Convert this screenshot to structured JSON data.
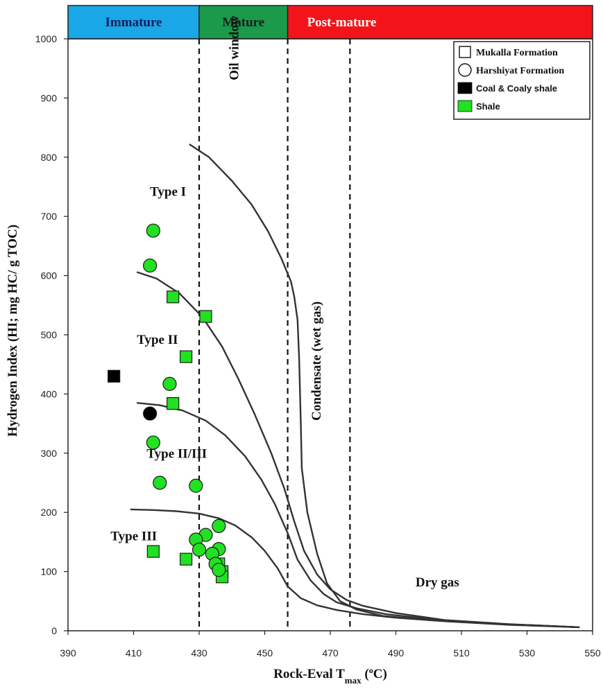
{
  "chart_data": {
    "type": "scatter",
    "xlabel": "Rock-Eval T",
    "xlabel_sub": "max",
    "xlabel_tail_pre": " (",
    "xlabel_sup": "o",
    "xlabel_tail": "C)",
    "ylabel": "Hydrogen Index (HI; mg HC/ g TOC)",
    "xlim": [
      390,
      550
    ],
    "ylim": [
      0,
      1000
    ],
    "xticks": [
      390,
      410,
      430,
      450,
      470,
      490,
      510,
      530,
      550
    ],
    "yticks": [
      0,
      100,
      200,
      300,
      400,
      500,
      600,
      700,
      800,
      900,
      1000
    ],
    "grid": false,
    "legend_position": "top-right",
    "maturity_bands": [
      {
        "label": "Immature",
        "from": 390,
        "to": 430,
        "color": "#1aa7e8"
      },
      {
        "label": "Mature",
        "from": 430,
        "to": 457,
        "color": "#1a9a4a"
      },
      {
        "label": "Post-mature",
        "from": 457,
        "to": 550,
        "color": "#f2141a"
      }
    ],
    "band_label_colors": {
      "Immature": "#1b1b5c",
      "Mature": "#1b1b1b",
      "Post-mature": "#ffffff"
    },
    "vertical_lines": [
      430,
      457,
      476
    ],
    "annotations": [
      {
        "text": "Type I",
        "x": 415,
        "y": 735
      },
      {
        "text": "Type II",
        "x": 411,
        "y": 485
      },
      {
        "text": "Type II/III",
        "x": 414,
        "y": 292
      },
      {
        "text": "Type III",
        "x": 403,
        "y": 153
      },
      {
        "text": "Oil window",
        "x": 442,
        "y": 930,
        "rotate": -90
      },
      {
        "text": "Condensate (wet gas)",
        "x": 467,
        "y": 355,
        "rotate": -90
      },
      {
        "text": "Dry gas",
        "x": 496,
        "y": 75
      }
    ],
    "curves": [
      {
        "name": "Type I",
        "points": [
          [
            427,
            822
          ],
          [
            433,
            800
          ],
          [
            440,
            760
          ],
          [
            446,
            720
          ],
          [
            451,
            675
          ],
          [
            455,
            630
          ],
          [
            458,
            590
          ],
          [
            459,
            565
          ],
          [
            460,
            525
          ],
          [
            460.5,
            460
          ],
          [
            461,
            350
          ],
          [
            461.3,
            275
          ],
          [
            463,
            200
          ],
          [
            466,
            130
          ],
          [
            469,
            80
          ],
          [
            473,
            50
          ],
          [
            478,
            36
          ],
          [
            486,
            25
          ],
          [
            500,
            18
          ],
          [
            520,
            12
          ],
          [
            546,
            6
          ]
        ]
      },
      {
        "name": "Type II",
        "points": [
          [
            411,
            606
          ],
          [
            417,
            595
          ],
          [
            424,
            570
          ],
          [
            431,
            530
          ],
          [
            437,
            480
          ],
          [
            442,
            425
          ],
          [
            447,
            365
          ],
          [
            452,
            300
          ],
          [
            456,
            240
          ],
          [
            459,
            185
          ],
          [
            462,
            135
          ],
          [
            466,
            95
          ],
          [
            470,
            70
          ],
          [
            475,
            52
          ],
          [
            480,
            42
          ],
          [
            490,
            30
          ],
          [
            505,
            18
          ],
          [
            525,
            11
          ],
          [
            546,
            6
          ]
        ]
      },
      {
        "name": "Type II/III",
        "points": [
          [
            411,
            385
          ],
          [
            418,
            381
          ],
          [
            425,
            372
          ],
          [
            432,
            355
          ],
          [
            438,
            330
          ],
          [
            444,
            295
          ],
          [
            449,
            255
          ],
          [
            453,
            215
          ],
          [
            457,
            165
          ],
          [
            460,
            120
          ],
          [
            464,
            85
          ],
          [
            468,
            62
          ],
          [
            472,
            48
          ],
          [
            478,
            38
          ],
          [
            487,
            28
          ],
          [
            500,
            20
          ],
          [
            520,
            12
          ],
          [
            546,
            6
          ]
        ]
      },
      {
        "name": "Type III",
        "points": [
          [
            409,
            205
          ],
          [
            416,
            204
          ],
          [
            423,
            202
          ],
          [
            430,
            198
          ],
          [
            436,
            190
          ],
          [
            441,
            178
          ],
          [
            446,
            158
          ],
          [
            450,
            135
          ],
          [
            454,
            105
          ],
          [
            457,
            75
          ],
          [
            461,
            55
          ],
          [
            466,
            43
          ],
          [
            472,
            35
          ],
          [
            480,
            28
          ],
          [
            490,
            22
          ],
          [
            505,
            16
          ],
          [
            525,
            10
          ],
          [
            546,
            6
          ]
        ]
      }
    ],
    "series": [
      {
        "name": "Mukalla Formation",
        "shape": "square",
        "points": [
          {
            "x": 422,
            "y": 564,
            "fill": "#22e022"
          },
          {
            "x": 432,
            "y": 531,
            "fill": "#22e022"
          },
          {
            "x": 426,
            "y": 463,
            "fill": "#22e022"
          },
          {
            "x": 404,
            "y": 430,
            "fill": "#000000"
          },
          {
            "x": 422,
            "y": 384,
            "fill": "#22e022"
          },
          {
            "x": 416,
            "y": 134,
            "fill": "#22e022"
          },
          {
            "x": 426,
            "y": 121,
            "fill": "#22e022"
          },
          {
            "x": 436,
            "y": 113,
            "fill": "#22e022"
          },
          {
            "x": 437,
            "y": 100,
            "fill": "#22e022"
          },
          {
            "x": 437,
            "y": 91,
            "fill": "#22e022"
          }
        ]
      },
      {
        "name": "Harshiyat Formation",
        "shape": "circle",
        "points": [
          {
            "x": 416,
            "y": 676,
            "fill": "#22e022"
          },
          {
            "x": 415,
            "y": 617,
            "fill": "#22e022"
          },
          {
            "x": 421,
            "y": 417,
            "fill": "#22e022"
          },
          {
            "x": 415,
            "y": 367,
            "fill": "#000000"
          },
          {
            "x": 416,
            "y": 318,
            "fill": "#22e022"
          },
          {
            "x": 418,
            "y": 250,
            "fill": "#22e022"
          },
          {
            "x": 429,
            "y": 245,
            "fill": "#22e022"
          },
          {
            "x": 436,
            "y": 177,
            "fill": "#22e022"
          },
          {
            "x": 432,
            "y": 162,
            "fill": "#22e022"
          },
          {
            "x": 429,
            "y": 154,
            "fill": "#22e022"
          },
          {
            "x": 436,
            "y": 138,
            "fill": "#22e022"
          },
          {
            "x": 430,
            "y": 137,
            "fill": "#22e022"
          },
          {
            "x": 434,
            "y": 130,
            "fill": "#22e022"
          },
          {
            "x": 435,
            "y": 113,
            "fill": "#22e022"
          },
          {
            "x": 436,
            "y": 103,
            "fill": "#22e022"
          }
        ]
      }
    ],
    "legend": [
      {
        "label": "Mukalla Formation",
        "marker": "square-open"
      },
      {
        "label": "Harshiyat Formation",
        "marker": "circle-open"
      },
      {
        "label": "Coal & Coaly shale",
        "marker": "swatch",
        "color": "#000000"
      },
      {
        "label": "Shale",
        "marker": "swatch",
        "color": "#22e022"
      }
    ]
  }
}
